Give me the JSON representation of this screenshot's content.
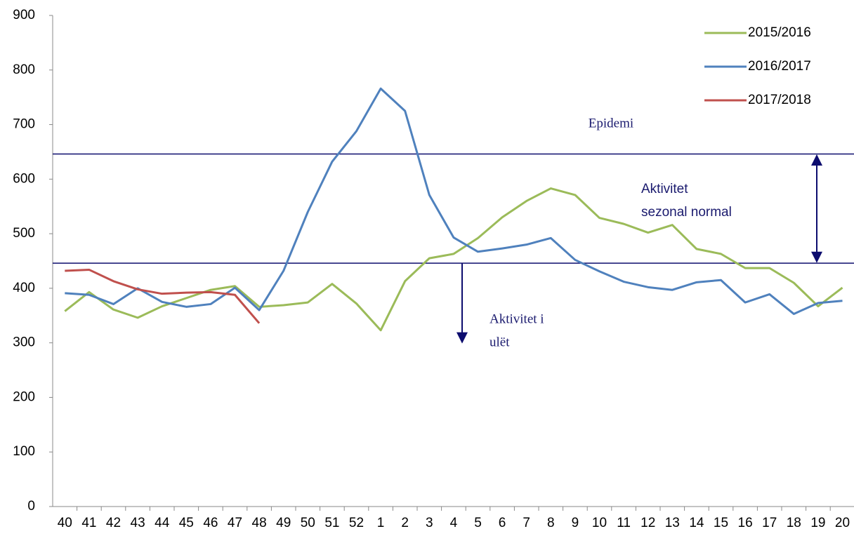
{
  "chart_data": {
    "type": "line",
    "categories": [
      "40",
      "41",
      "42",
      "43",
      "44",
      "45",
      "46",
      "47",
      "48",
      "49",
      "50",
      "51",
      "52",
      "1",
      "2",
      "3",
      "4",
      "5",
      "6",
      "7",
      "8",
      "9",
      "10",
      "11",
      "12",
      "13",
      "14",
      "15",
      "16",
      "17",
      "18",
      "19",
      "20"
    ],
    "series": [
      {
        "name": "2015/2016",
        "color": "#9bbb59",
        "values": [
          358,
          393,
          361,
          346,
          367,
          382,
          397,
          404,
          366,
          369,
          374,
          408,
          372,
          323,
          413,
          455,
          463,
          492,
          530,
          560,
          583,
          571,
          529,
          518,
          502,
          516,
          472,
          463,
          437,
          437,
          410,
          367,
          401
        ]
      },
      {
        "name": "2016/2017",
        "color": "#4f81bd",
        "values": [
          391,
          388,
          371,
          400,
          375,
          366,
          371,
          401,
          360,
          432,
          540,
          632,
          688,
          766,
          725,
          571,
          493,
          467,
          473,
          480,
          492,
          452,
          431,
          412,
          402,
          397,
          411,
          415,
          374,
          389,
          353,
          373,
          377
        ]
      },
      {
        "name": "2017/2018",
        "color": "#c0504d",
        "values": [
          432,
          434,
          413,
          398,
          390,
          392,
          393,
          388,
          336,
          null,
          null,
          null,
          null,
          null,
          null,
          null,
          null,
          null,
          null,
          null,
          null,
          null,
          null,
          null,
          null,
          null,
          null,
          null,
          null,
          null,
          null,
          null,
          null
        ]
      }
    ],
    "reference_lines": [
      646,
      446
    ],
    "reference_color": "#0c0c6e",
    "annotations": [
      [
        "Epidemi"
      ],
      [
        "Aktivitet",
        "sezonal normal"
      ],
      [
        "Aktivitet i",
        "ulët"
      ]
    ],
    "ylim": [
      0,
      900
    ],
    "yticks": [
      0,
      100,
      200,
      300,
      400,
      500,
      600,
      700,
      800,
      900
    ],
    "grid": false,
    "legend": "top right"
  }
}
